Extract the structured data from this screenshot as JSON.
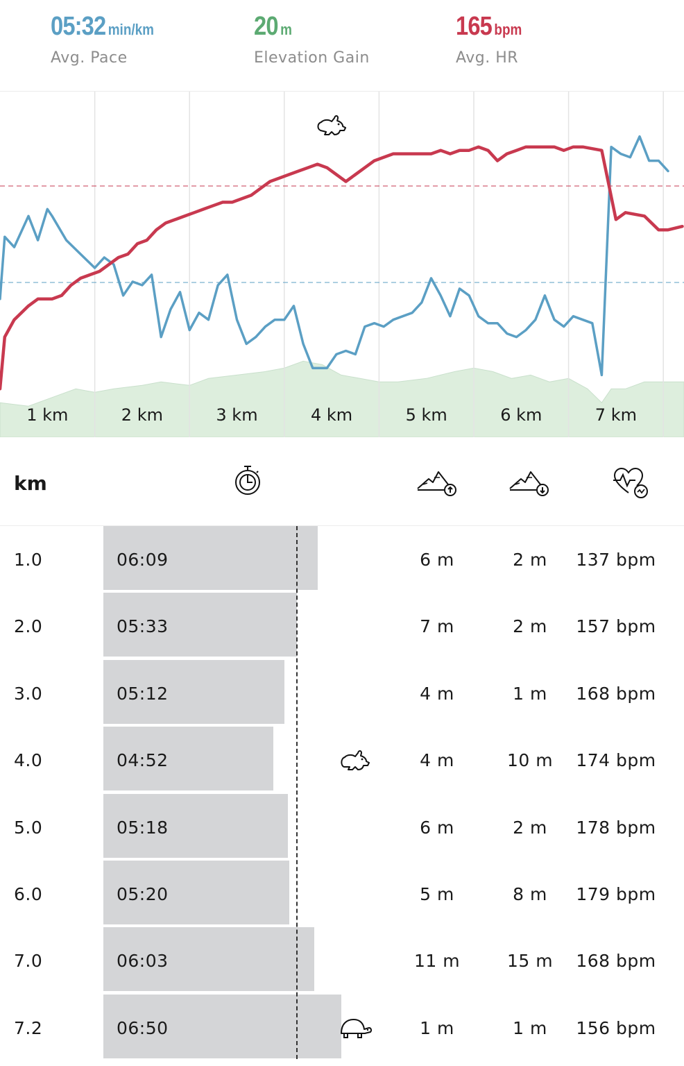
{
  "summary": {
    "pace": {
      "value": "05:32",
      "unit": "min/km",
      "label": "Avg. Pace",
      "color": "#5b9fc4"
    },
    "elevation": {
      "value": "20",
      "unit": "m",
      "label": "Elevation Gain",
      "color": "#5caa72"
    },
    "hr": {
      "value": "165",
      "unit": "bpm",
      "label": "Avg. HR",
      "color": "#c8394f"
    }
  },
  "chart_data": {
    "type": "line",
    "x_tick_labels": [
      "1 km",
      "2 km",
      "3 km",
      "4 km",
      "5 km",
      "6 km",
      "7 km"
    ],
    "x_range_km": [
      0,
      7.2
    ],
    "grid": true,
    "colors": {
      "pace": "#5b9fc4",
      "heart_rate": "#c8394f",
      "elevation": "#ddeedd"
    },
    "markers": [
      {
        "icon": "rabbit-icon",
        "x_km": 3.5
      }
    ],
    "series": [
      {
        "key": "heart_rate",
        "values_normalized": [
          [
            0.0,
            0.86
          ],
          [
            0.05,
            0.71
          ],
          [
            0.15,
            0.66
          ],
          [
            0.3,
            0.62
          ],
          [
            0.4,
            0.6
          ],
          [
            0.55,
            0.6
          ],
          [
            0.65,
            0.59
          ],
          [
            0.75,
            0.56
          ],
          [
            0.85,
            0.54
          ],
          [
            0.95,
            0.53
          ],
          [
            1.05,
            0.52
          ],
          [
            1.15,
            0.5
          ],
          [
            1.25,
            0.48
          ],
          [
            1.35,
            0.47
          ],
          [
            1.45,
            0.44
          ],
          [
            1.55,
            0.43
          ],
          [
            1.65,
            0.4
          ],
          [
            1.75,
            0.38
          ],
          [
            1.85,
            0.37
          ],
          [
            1.95,
            0.36
          ],
          [
            2.05,
            0.35
          ],
          [
            2.15,
            0.34
          ],
          [
            2.25,
            0.33
          ],
          [
            2.35,
            0.32
          ],
          [
            2.45,
            0.32
          ],
          [
            2.55,
            0.31
          ],
          [
            2.65,
            0.3
          ],
          [
            2.75,
            0.28
          ],
          [
            2.85,
            0.26
          ],
          [
            2.95,
            0.25
          ],
          [
            3.05,
            0.24
          ],
          [
            3.15,
            0.23
          ],
          [
            3.25,
            0.22
          ],
          [
            3.35,
            0.21
          ],
          [
            3.45,
            0.22
          ],
          [
            3.55,
            0.24
          ],
          [
            3.65,
            0.26
          ],
          [
            3.75,
            0.24
          ],
          [
            3.85,
            0.22
          ],
          [
            3.95,
            0.2
          ],
          [
            4.05,
            0.19
          ],
          [
            4.15,
            0.18
          ],
          [
            4.25,
            0.18
          ],
          [
            4.35,
            0.18
          ],
          [
            4.55,
            0.18
          ],
          [
            4.65,
            0.17
          ],
          [
            4.75,
            0.18
          ],
          [
            4.85,
            0.17
          ],
          [
            4.95,
            0.17
          ],
          [
            5.05,
            0.16
          ],
          [
            5.15,
            0.17
          ],
          [
            5.25,
            0.2
          ],
          [
            5.35,
            0.18
          ],
          [
            5.45,
            0.17
          ],
          [
            5.55,
            0.16
          ],
          [
            5.65,
            0.16
          ],
          [
            5.85,
            0.16
          ],
          [
            5.95,
            0.17
          ],
          [
            6.05,
            0.16
          ],
          [
            6.15,
            0.16
          ],
          [
            6.35,
            0.17
          ],
          [
            6.5,
            0.37
          ],
          [
            6.6,
            0.35
          ],
          [
            6.8,
            0.36
          ],
          [
            6.95,
            0.4
          ],
          [
            7.05,
            0.4
          ],
          [
            7.2,
            0.39
          ]
        ]
      },
      {
        "key": "pace",
        "values_normalized": [
          [
            0.0,
            0.6
          ],
          [
            0.05,
            0.42
          ],
          [
            0.15,
            0.45
          ],
          [
            0.3,
            0.36
          ],
          [
            0.4,
            0.43
          ],
          [
            0.5,
            0.34
          ],
          [
            0.55,
            0.36
          ],
          [
            0.7,
            0.43
          ],
          [
            0.85,
            0.47
          ],
          [
            1.0,
            0.51
          ],
          [
            1.1,
            0.48
          ],
          [
            1.2,
            0.5
          ],
          [
            1.3,
            0.59
          ],
          [
            1.4,
            0.55
          ],
          [
            1.5,
            0.56
          ],
          [
            1.6,
            0.53
          ],
          [
            1.7,
            0.71
          ],
          [
            1.8,
            0.63
          ],
          [
            1.9,
            0.58
          ],
          [
            2.0,
            0.69
          ],
          [
            2.1,
            0.64
          ],
          [
            2.2,
            0.66
          ],
          [
            2.3,
            0.56
          ],
          [
            2.4,
            0.53
          ],
          [
            2.5,
            0.66
          ],
          [
            2.6,
            0.73
          ],
          [
            2.7,
            0.71
          ],
          [
            2.8,
            0.68
          ],
          [
            2.9,
            0.66
          ],
          [
            3.0,
            0.66
          ],
          [
            3.1,
            0.62
          ],
          [
            3.2,
            0.73
          ],
          [
            3.3,
            0.8
          ],
          [
            3.45,
            0.8
          ],
          [
            3.55,
            0.76
          ],
          [
            3.65,
            0.75
          ],
          [
            3.75,
            0.76
          ],
          [
            3.85,
            0.68
          ],
          [
            3.95,
            0.67
          ],
          [
            4.05,
            0.68
          ],
          [
            4.15,
            0.66
          ],
          [
            4.25,
            0.65
          ],
          [
            4.35,
            0.64
          ],
          [
            4.45,
            0.61
          ],
          [
            4.55,
            0.54
          ],
          [
            4.65,
            0.59
          ],
          [
            4.75,
            0.65
          ],
          [
            4.85,
            0.57
          ],
          [
            4.95,
            0.59
          ],
          [
            5.05,
            0.65
          ],
          [
            5.15,
            0.67
          ],
          [
            5.25,
            0.67
          ],
          [
            5.35,
            0.7
          ],
          [
            5.45,
            0.71
          ],
          [
            5.55,
            0.69
          ],
          [
            5.65,
            0.66
          ],
          [
            5.75,
            0.59
          ],
          [
            5.85,
            0.66
          ],
          [
            5.95,
            0.68
          ],
          [
            6.05,
            0.65
          ],
          [
            6.15,
            0.66
          ],
          [
            6.25,
            0.67
          ],
          [
            6.35,
            0.82
          ],
          [
            6.45,
            0.16
          ],
          [
            6.55,
            0.18
          ],
          [
            6.65,
            0.19
          ],
          [
            6.75,
            0.13
          ],
          [
            6.85,
            0.2
          ],
          [
            6.95,
            0.2
          ],
          [
            7.05,
            0.23
          ]
        ]
      },
      {
        "key": "elevation",
        "values_normalized": [
          [
            0.0,
            0.9
          ],
          [
            0.3,
            0.91
          ],
          [
            0.6,
            0.88
          ],
          [
            0.8,
            0.86
          ],
          [
            1.0,
            0.87
          ],
          [
            1.2,
            0.86
          ],
          [
            1.5,
            0.85
          ],
          [
            1.7,
            0.84
          ],
          [
            2.0,
            0.85
          ],
          [
            2.2,
            0.83
          ],
          [
            2.5,
            0.82
          ],
          [
            2.8,
            0.81
          ],
          [
            3.0,
            0.8
          ],
          [
            3.2,
            0.78
          ],
          [
            3.4,
            0.79
          ],
          [
            3.6,
            0.82
          ],
          [
            3.8,
            0.83
          ],
          [
            4.0,
            0.84
          ],
          [
            4.2,
            0.84
          ],
          [
            4.5,
            0.83
          ],
          [
            4.8,
            0.81
          ],
          [
            5.0,
            0.8
          ],
          [
            5.2,
            0.81
          ],
          [
            5.4,
            0.83
          ],
          [
            5.6,
            0.82
          ],
          [
            5.8,
            0.84
          ],
          [
            6.0,
            0.83
          ],
          [
            6.2,
            0.86
          ],
          [
            6.35,
            0.9
          ],
          [
            6.45,
            0.86
          ],
          [
            6.6,
            0.86
          ],
          [
            6.8,
            0.84
          ],
          [
            7.0,
            0.84
          ],
          [
            7.2,
            0.84
          ]
        ]
      }
    ]
  },
  "table": {
    "header": {
      "km_label": "km",
      "icons": [
        "stopwatch-icon",
        "ascent-icon",
        "descent-icon",
        "heart-rate-icon"
      ]
    },
    "rows": [
      {
        "km": "1.0",
        "pace": "06:09",
        "pace_seconds": 369,
        "ascent": "6 m",
        "descent": "2 m",
        "hr": "137 bpm",
        "marker": ""
      },
      {
        "km": "2.0",
        "pace": "05:33",
        "pace_seconds": 333,
        "ascent": "7 m",
        "descent": "2 m",
        "hr": "157 bpm",
        "marker": ""
      },
      {
        "km": "3.0",
        "pace": "05:12",
        "pace_seconds": 312,
        "ascent": "4 m",
        "descent": "1 m",
        "hr": "168 bpm",
        "marker": ""
      },
      {
        "km": "4.0",
        "pace": "04:52",
        "pace_seconds": 292,
        "ascent": "4 m",
        "descent": "10 m",
        "hr": "174 bpm",
        "marker": "rabbit-icon"
      },
      {
        "km": "5.0",
        "pace": "05:18",
        "pace_seconds": 318,
        "ascent": "6 m",
        "descent": "2 m",
        "hr": "178 bpm",
        "marker": ""
      },
      {
        "km": "6.0",
        "pace": "05:20",
        "pace_seconds": 320,
        "ascent": "5 m",
        "descent": "8 m",
        "hr": "179 bpm",
        "marker": ""
      },
      {
        "km": "7.0",
        "pace": "06:03",
        "pace_seconds": 363,
        "ascent": "11 m",
        "descent": "15 m",
        "hr": "168 bpm",
        "marker": ""
      },
      {
        "km": "7.2",
        "pace": "06:50",
        "pace_seconds": 410,
        "ascent": "1 m",
        "descent": "1 m",
        "hr": "156 bpm",
        "marker": "turtle-icon"
      }
    ]
  }
}
